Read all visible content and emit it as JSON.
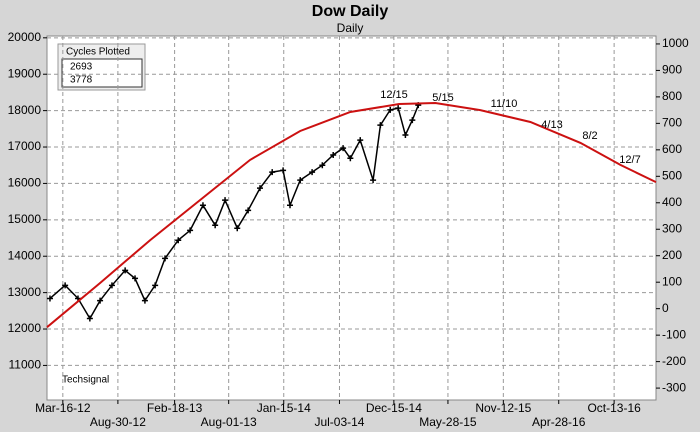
{
  "chart_data": {
    "type": "line",
    "title": "Dow Daily",
    "subtitle": "Daily",
    "watermark": "Techsignal",
    "xlim": [
      "Jan-28-12",
      "Feb-17-17"
    ],
    "xticks": [
      "Mar-16-12",
      "Aug-30-12",
      "Feb-18-13",
      "Aug-01-13",
      "Jan-15-14",
      "Jul-03-14",
      "Dec-15-14",
      "May-28-15",
      "Nov-12-15",
      "Apr-28-16",
      "Oct-13-16"
    ],
    "ylim": [
      10050,
      20050
    ],
    "yticks": [
      11000,
      12000,
      13000,
      14000,
      15000,
      16000,
      17000,
      18000,
      19000,
      20000
    ],
    "y2lim": [
      -345,
      1030
    ],
    "y2ticks": [
      -300,
      -200,
      -100,
      0,
      100,
      200,
      300,
      400,
      500,
      600,
      700,
      800,
      900,
      1000
    ],
    "grid": true,
    "series": [
      {
        "color": "#000000",
        "x": [
          "Feb-06-12",
          "Mar-23-12",
          "May-01-12",
          "Jun-06-12",
          "Jul-07-12",
          "Aug-12-12",
          "Sep-21-12",
          "Oct-21-12",
          "Nov-20-12",
          "Dec-21-12",
          "Jan-20-13",
          "Mar-01-13",
          "Apr-06-13",
          "May-15-13",
          "Jun-21-13",
          "Jul-21-13",
          "Aug-27-13",
          "Sep-29-13",
          "Nov-04-13",
          "Dec-11-13",
          "Jan-13-14",
          "Feb-03-14",
          "Mar-06-14",
          "Apr-11-14",
          "May-12-14",
          "Jun-14-14",
          "Jul-14-14",
          "Aug-05-14",
          "Sep-04-14",
          "Oct-13-14",
          "Nov-04-14",
          "Dec-04-14",
          "Dec-28-14",
          "Jan-19-15",
          "Feb-09-15",
          "Feb-27-15"
        ],
        "values": [
          12840,
          13200,
          12840,
          12290,
          12780,
          13200,
          13610,
          13390,
          12780,
          13200,
          13940,
          14440,
          14710,
          15400,
          14850,
          15540,
          14770,
          15260,
          15870,
          16310,
          16360,
          15400,
          16090,
          16310,
          16500,
          16780,
          16970,
          16690,
          17190,
          16090,
          17600,
          18020,
          18070,
          17330,
          17740,
          18150
        ]
      },
      {
        "color": "#cc1111",
        "axis": "y2",
        "x": [
          "Jan-28-12",
          "Jul-07-12",
          "Dec-06-12",
          "May-06-13",
          "Oct-05-13",
          "Mar-06-14",
          "Aug-05-14",
          "Dec-31-14",
          "Apr-20-15",
          "Sep-03-15",
          "Feb-02-16",
          "Jul-03-16",
          "Nov-01-16",
          "Feb-17-17"
        ],
        "values": [
          -70,
          97,
          259,
          410,
          562,
          671,
          743,
          773,
          777,
          750,
          705,
          626,
          543,
          478
        ]
      }
    ],
    "legend": {
      "title": "Cycles Plotted",
      "entries": [
        {
          "label": "2693",
          "color": "#cc1111"
        },
        {
          "label": "3778",
          "color": "#1a1a80"
        }
      ]
    },
    "annotations": [
      "12/15",
      "5/15",
      "11/10",
      "4/13",
      "8/2",
      "12/7"
    ]
  }
}
